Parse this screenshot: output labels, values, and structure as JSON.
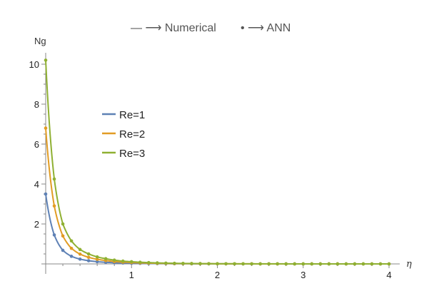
{
  "header": {
    "numerical_label": "— ⟶ Numerical",
    "ann_label": "• ⟶ ANN"
  },
  "chart_data": {
    "type": "line",
    "xlabel": "η",
    "ylabel": "Ng",
    "xlim": [
      0,
      4
    ],
    "ylim": [
      0,
      10
    ],
    "x_ticks": [
      1,
      2,
      3,
      4
    ],
    "y_ticks": [
      2,
      4,
      6,
      8,
      10
    ],
    "legend_position": "upper-left",
    "grid": false,
    "marker_step": 0.1,
    "series": [
      {
        "name": "Re=1",
        "color": "#5e81b5",
        "x": [
          0,
          0.1,
          0.2,
          0.3,
          0.4,
          0.5,
          0.6,
          0.7,
          0.8,
          0.9,
          1.0,
          1.2,
          1.4,
          1.6,
          1.8,
          2.0,
          2.5,
          3.0,
          3.5,
          4.0
        ],
        "y": [
          3.5,
          1.45,
          0.68,
          0.38,
          0.24,
          0.16,
          0.11,
          0.08,
          0.06,
          0.045,
          0.035,
          0.02,
          0.013,
          0.008,
          0.005,
          0.003,
          0.001,
          0.0005,
          0.0002,
          0.0001
        ]
      },
      {
        "name": "Re=2",
        "color": "#e19c24",
        "x": [
          0,
          0.1,
          0.2,
          0.3,
          0.4,
          0.5,
          0.6,
          0.7,
          0.8,
          0.9,
          1.0,
          1.2,
          1.4,
          1.6,
          1.8,
          2.0,
          2.5,
          3.0,
          3.5,
          4.0
        ],
        "y": [
          6.8,
          2.9,
          1.4,
          0.78,
          0.49,
          0.33,
          0.23,
          0.17,
          0.12,
          0.09,
          0.07,
          0.04,
          0.025,
          0.015,
          0.01,
          0.006,
          0.002,
          0.001,
          0.0004,
          0.0002
        ]
      },
      {
        "name": "Re=3",
        "color": "#8fb032",
        "x": [
          0,
          0.1,
          0.2,
          0.3,
          0.4,
          0.5,
          0.6,
          0.7,
          0.8,
          0.9,
          1.0,
          1.2,
          1.4,
          1.6,
          1.8,
          2.0,
          2.5,
          3.0,
          3.5,
          4.0
        ],
        "y": [
          10.2,
          4.25,
          2.0,
          1.15,
          0.72,
          0.5,
          0.35,
          0.26,
          0.19,
          0.14,
          0.11,
          0.065,
          0.04,
          0.025,
          0.016,
          0.01,
          0.004,
          0.0015,
          0.0006,
          0.0003
        ]
      }
    ]
  }
}
